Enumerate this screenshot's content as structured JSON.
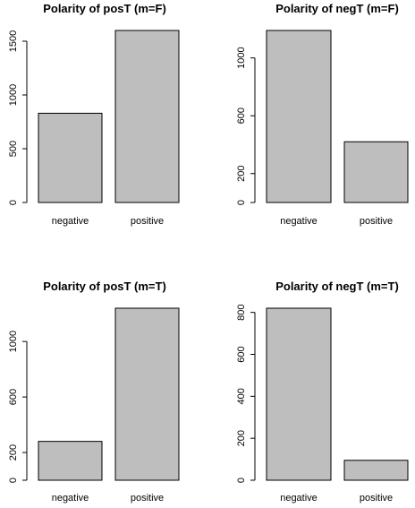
{
  "chart_data": [
    {
      "type": "bar",
      "title": "Polarity of posT (m=F)",
      "categories": [
        "negative",
        "positive"
      ],
      "values": [
        830,
        1600
      ],
      "yticks": [
        0,
        500,
        1000,
        1500
      ],
      "ylim": [
        0,
        1600
      ],
      "bar_color": "#bebebe",
      "grid": false
    },
    {
      "type": "bar",
      "title": "Polarity of negT (m=F)",
      "categories": [
        "negative",
        "positive"
      ],
      "values": [
        1190,
        420
      ],
      "yticks": [
        0,
        200,
        600,
        1000
      ],
      "ylim": [
        0,
        1190
      ],
      "bar_color": "#bebebe",
      "grid": false
    },
    {
      "type": "bar",
      "title": "Polarity of posT (m=T)",
      "categories": [
        "negative",
        "positive"
      ],
      "values": [
        280,
        1240
      ],
      "yticks": [
        0,
        200,
        600,
        1000
      ],
      "ylim": [
        0,
        1240
      ],
      "bar_color": "#bebebe",
      "grid": false
    },
    {
      "type": "bar",
      "title": "Polarity of negT (m=T)",
      "categories": [
        "negative",
        "positive"
      ],
      "values": [
        820,
        95
      ],
      "yticks": [
        0,
        200,
        400,
        600,
        800
      ],
      "ylim": [
        0,
        820
      ],
      "bar_color": "#bebebe",
      "grid": false
    }
  ]
}
